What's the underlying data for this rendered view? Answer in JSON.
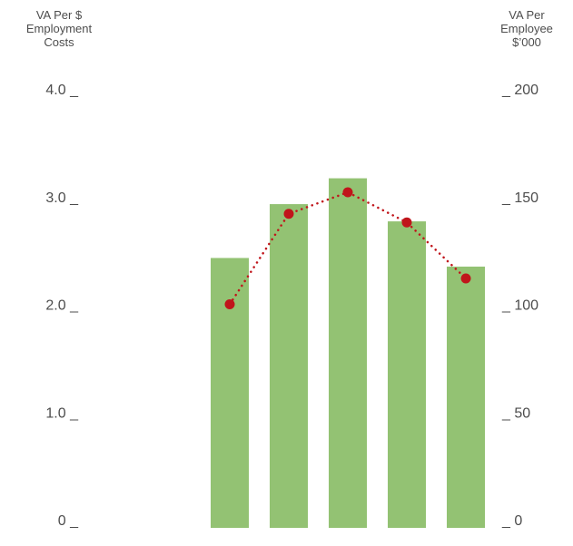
{
  "chart_data": {
    "type": "bar+line",
    "title": "",
    "left_axis": {
      "title_lines": [
        "VA Per $",
        "Employment",
        "Costs"
      ],
      "ticks": [
        "4.0 _",
        "3.0 _",
        "2.0 _",
        "1.0 _",
        "0 _"
      ],
      "tick_values": [
        4,
        3,
        2,
        1,
        0
      ],
      "ylim": [
        0,
        4
      ]
    },
    "right_axis": {
      "title_lines": [
        "VA Per",
        "Employee",
        "$’000"
      ],
      "ticks": [
        "_ 200",
        "_ 150",
        "_ 100",
        "_ 50",
        "_ 0"
      ],
      "tick_values": [
        200,
        150,
        100,
        50,
        0
      ],
      "ylim": [
        0,
        200
      ]
    },
    "categories": [
      "",
      "",
      "",
      "",
      ""
    ],
    "series": [
      {
        "type": "bar",
        "axis": "left",
        "values": [
          2.43,
          2.93,
          3.17,
          2.77,
          2.35
        ]
      },
      {
        "type": "line",
        "axis": "left",
        "style": "dotted",
        "values": [
          2.0,
          2.84,
          3.04,
          2.76,
          2.24
        ]
      }
    ],
    "colors": {
      "bar": "#93c273",
      "line": "#c0151b",
      "text": "#4d4d4d"
    },
    "grid": false,
    "legend": "none"
  }
}
